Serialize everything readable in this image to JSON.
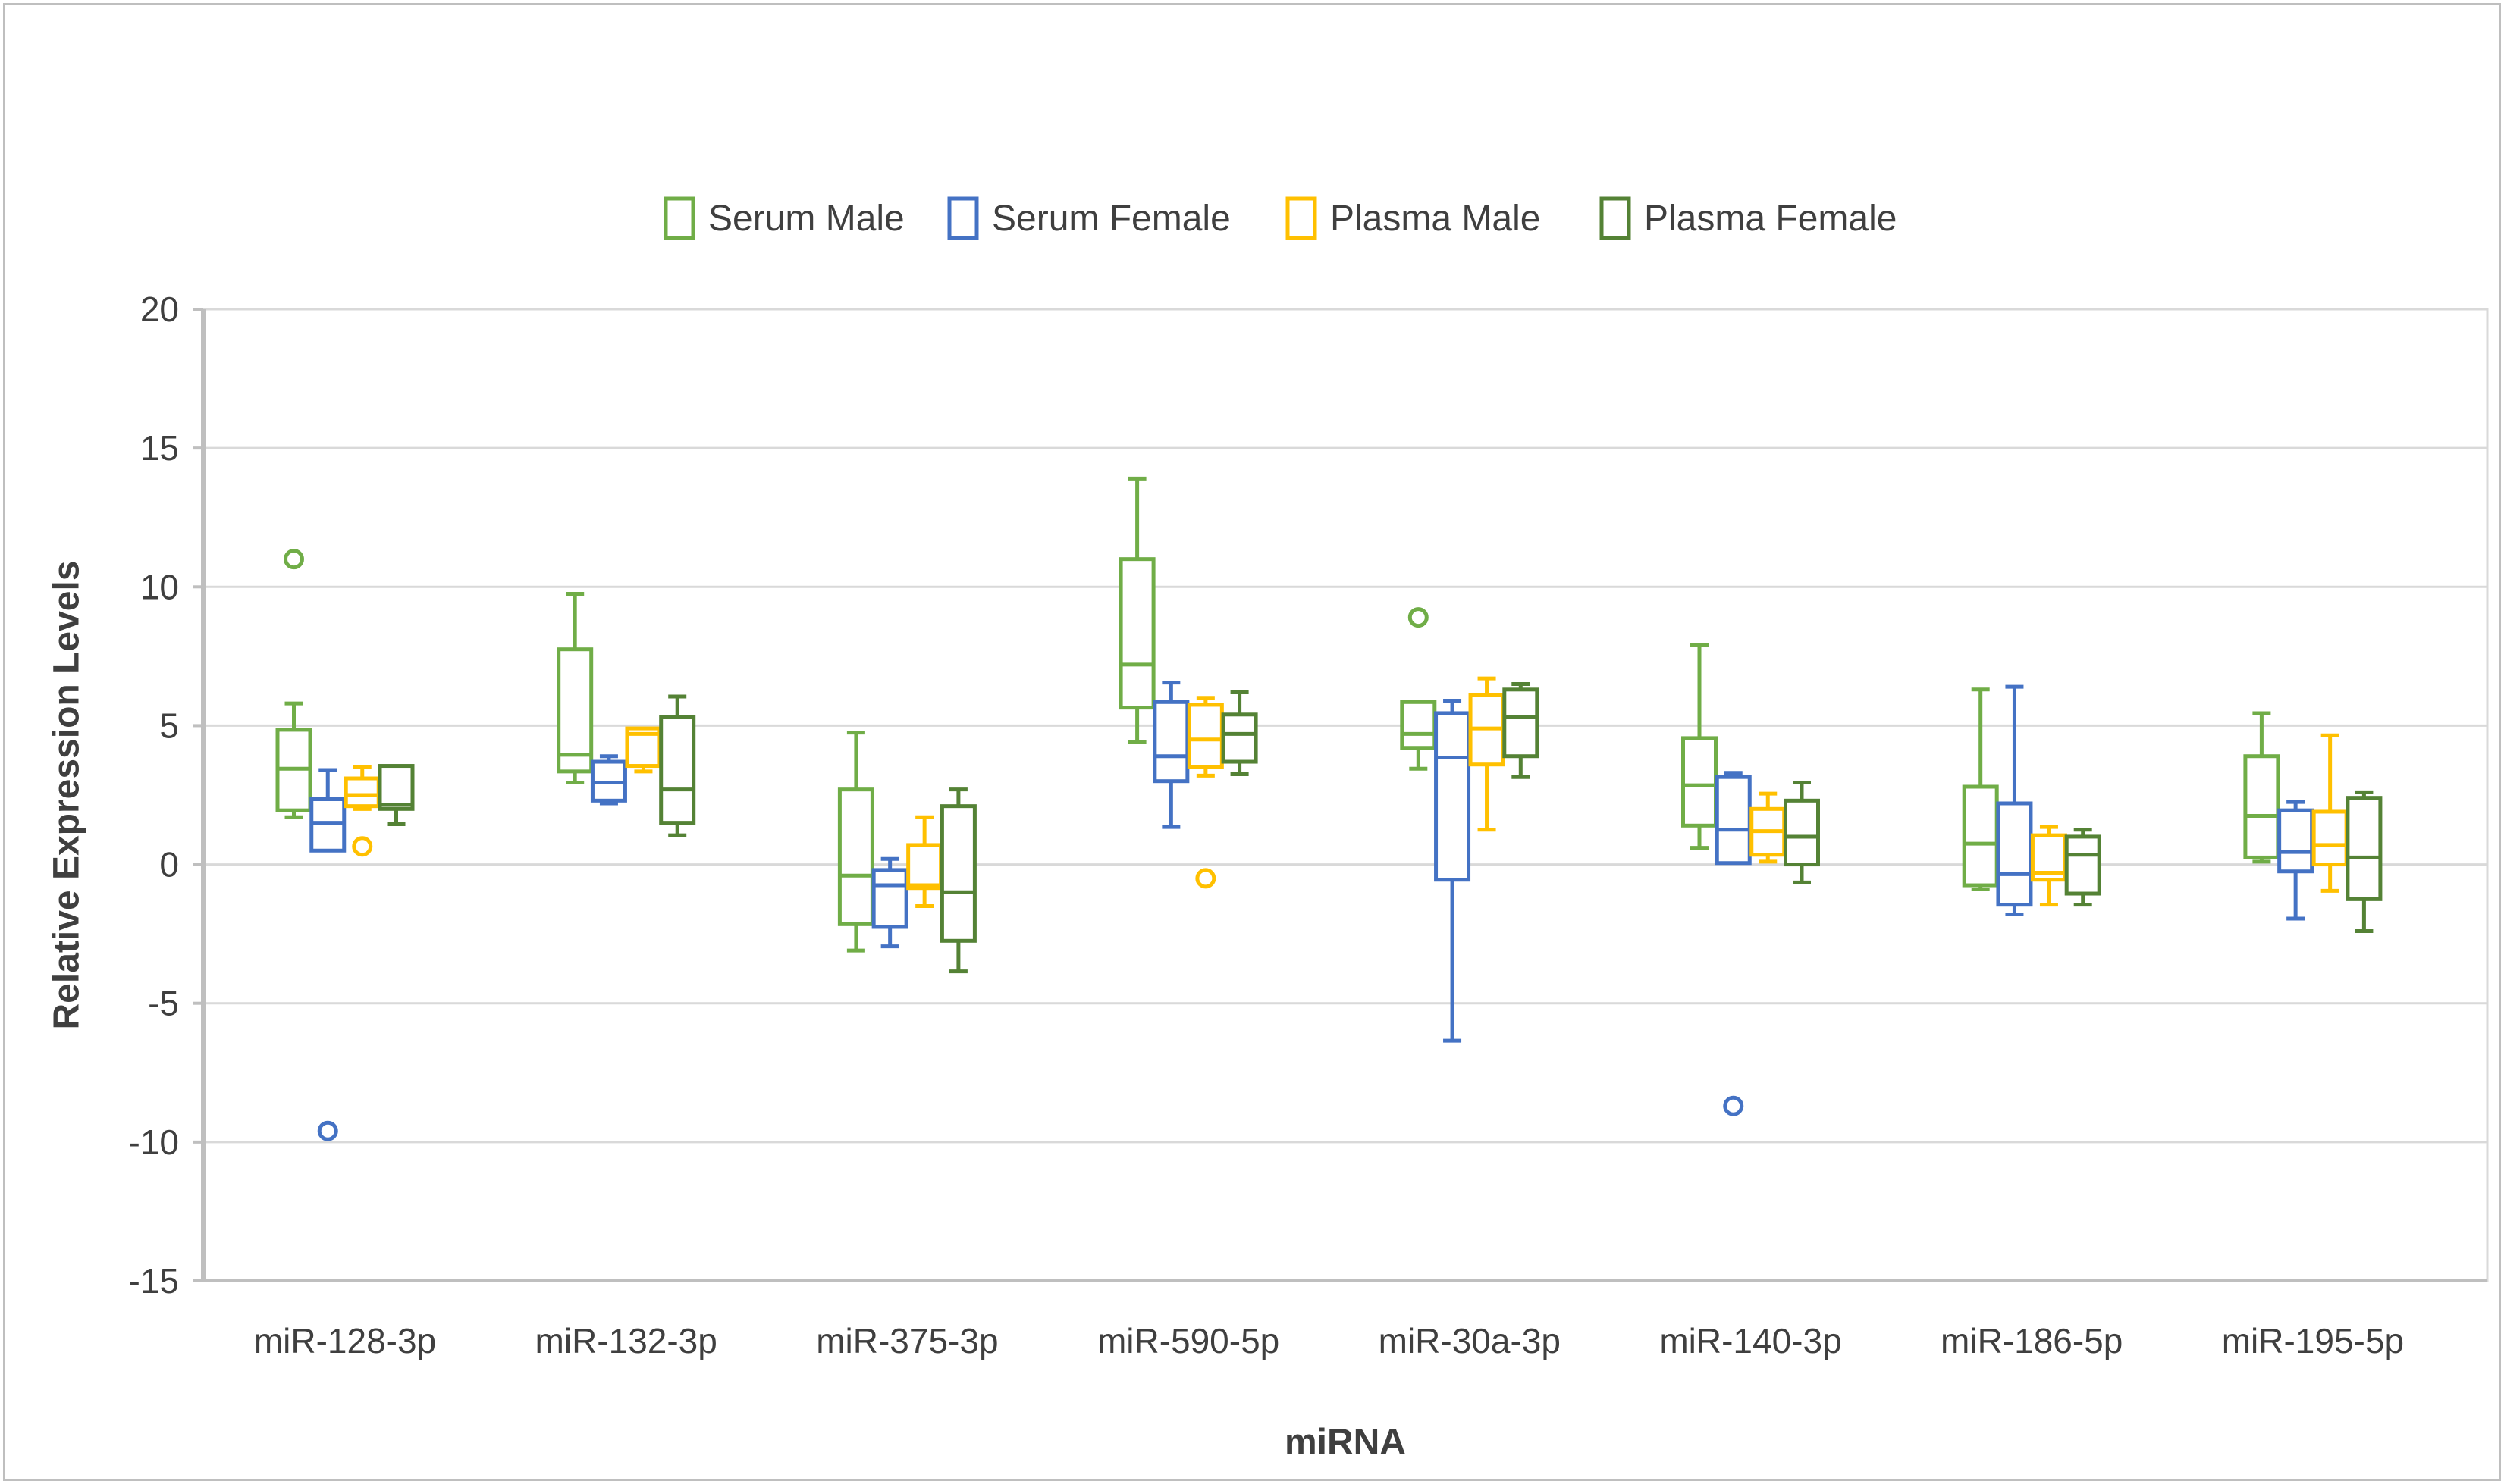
{
  "figure": {
    "background": "#ffffff",
    "border_color": "#bfbfbf"
  },
  "colors": {
    "gridline": "#d9d9d9",
    "axis_line": "#bfbfbf",
    "text": "#3f3f3f",
    "box_fill": "#ffffff"
  },
  "chart_data": {
    "type": "boxplot",
    "title": "",
    "xlabel": "miRNA",
    "ylabel": "Relative Expression Levels",
    "ylim": [
      -15,
      20
    ],
    "yticks": [
      20,
      15,
      10,
      5,
      0,
      -5,
      -10,
      -15
    ],
    "grid": true,
    "legend_position": "top",
    "categories": [
      "miR-128-3p",
      "miR-132-3p",
      "miR-375-3p",
      "miR-590-5p",
      "miR-30a-3p",
      "miR-140-3p",
      "miR-186-5p",
      "miR-195-5p"
    ],
    "series": [
      {
        "name": "Serum Male",
        "color": "#70AD47",
        "boxes": [
          {
            "lo": 1.7,
            "q1": 1.95,
            "med": 3.45,
            "q3": 4.85,
            "hi": 5.8,
            "outliers": [
              11.0
            ]
          },
          {
            "lo": 2.95,
            "q1": 3.35,
            "med": 3.95,
            "q3": 7.75,
            "hi": 9.75,
            "outliers": []
          },
          {
            "lo": -3.1,
            "q1": -2.15,
            "med": -0.4,
            "q3": 2.7,
            "hi": 4.75,
            "outliers": []
          },
          {
            "lo": 4.4,
            "q1": 5.65,
            "med": 7.2,
            "q3": 11.0,
            "hi": 13.9,
            "outliers": []
          },
          {
            "lo": 3.45,
            "q1": 4.2,
            "med": 4.7,
            "q3": 5.85,
            "hi": 5.85,
            "outliers": [
              8.9
            ]
          },
          {
            "lo": 0.6,
            "q1": 1.4,
            "med": 2.85,
            "q3": 4.55,
            "hi": 7.9,
            "outliers": []
          },
          {
            "lo": -0.9,
            "q1": -0.75,
            "med": 0.75,
            "q3": 2.8,
            "hi": 6.3,
            "outliers": []
          },
          {
            "lo": 0.1,
            "q1": 0.25,
            "med": 1.75,
            "q3": 3.9,
            "hi": 5.45,
            "outliers": []
          }
        ]
      },
      {
        "name": "Serum Female",
        "color": "#4472C4",
        "boxes": [
          {
            "lo": 0.5,
            "q1": 0.5,
            "med": 1.5,
            "q3": 2.35,
            "hi": 3.4,
            "outliers": [
              -9.6
            ]
          },
          {
            "lo": 2.2,
            "q1": 2.3,
            "med": 2.95,
            "q3": 3.7,
            "hi": 3.9,
            "outliers": []
          },
          {
            "lo": -2.95,
            "q1": -2.25,
            "med": -0.75,
            "q3": -0.2,
            "hi": 0.2,
            "outliers": []
          },
          {
            "lo": 1.35,
            "q1": 3.0,
            "med": 3.9,
            "q3": 5.85,
            "hi": 6.55,
            "outliers": []
          },
          {
            "lo": -6.35,
            "q1": -0.55,
            "med": 3.85,
            "q3": 5.45,
            "hi": 5.9,
            "outliers": []
          },
          {
            "lo": 0.05,
            "q1": 0.05,
            "med": 1.25,
            "q3": 3.15,
            "hi": 3.3,
            "outliers": [
              -8.7
            ]
          },
          {
            "lo": -1.8,
            "q1": -1.45,
            "med": -0.35,
            "q3": 2.2,
            "hi": 6.4,
            "outliers": []
          },
          {
            "lo": -1.95,
            "q1": -0.25,
            "med": 0.45,
            "q3": 1.95,
            "hi": 2.25,
            "outliers": []
          }
        ]
      },
      {
        "name": "Plasma Male",
        "color": "#FFC000",
        "boxes": [
          {
            "lo": 2.0,
            "q1": 2.1,
            "med": 2.5,
            "q3": 3.1,
            "hi": 3.5,
            "outliers": [
              0.65
            ]
          },
          {
            "lo": 3.35,
            "q1": 3.55,
            "med": 4.7,
            "q3": 4.9,
            "hi": 4.9,
            "outliers": []
          },
          {
            "lo": -1.5,
            "q1": -0.85,
            "med": -0.75,
            "q3": 0.7,
            "hi": 1.7,
            "outliers": []
          },
          {
            "lo": 3.2,
            "q1": 3.5,
            "med": 4.5,
            "q3": 5.75,
            "hi": 6.0,
            "outliers": [
              -0.5
            ]
          },
          {
            "lo": 1.25,
            "q1": 3.6,
            "med": 4.9,
            "q3": 6.1,
            "hi": 6.7,
            "outliers": []
          },
          {
            "lo": 0.1,
            "q1": 0.35,
            "med": 1.2,
            "q3": 2.0,
            "hi": 2.55,
            "outliers": []
          },
          {
            "lo": -1.45,
            "q1": -0.55,
            "med": -0.3,
            "q3": 1.05,
            "hi": 1.35,
            "outliers": []
          },
          {
            "lo": -0.95,
            "q1": 0.0,
            "med": 0.7,
            "q3": 1.9,
            "hi": 4.65,
            "outliers": []
          }
        ]
      },
      {
        "name": "Plasma Female",
        "color": "#548235",
        "boxes": [
          {
            "lo": 1.45,
            "q1": 2.0,
            "med": 2.15,
            "q3": 3.55,
            "hi": 3.55,
            "outliers": []
          },
          {
            "lo": 1.05,
            "q1": 1.5,
            "med": 2.7,
            "q3": 5.3,
            "hi": 6.05,
            "outliers": []
          },
          {
            "lo": -3.85,
            "q1": -2.75,
            "med": -1.0,
            "q3": 2.1,
            "hi": 2.7,
            "outliers": []
          },
          {
            "lo": 3.25,
            "q1": 3.7,
            "med": 4.7,
            "q3": 5.4,
            "hi": 6.2,
            "outliers": []
          },
          {
            "lo": 3.15,
            "q1": 3.9,
            "med": 5.3,
            "q3": 6.3,
            "hi": 6.5,
            "outliers": []
          },
          {
            "lo": -0.65,
            "q1": 0.0,
            "med": 1.0,
            "q3": 2.3,
            "hi": 2.95,
            "outliers": []
          },
          {
            "lo": -1.45,
            "q1": -1.05,
            "med": 0.35,
            "q3": 1.0,
            "hi": 1.25,
            "outliers": []
          },
          {
            "lo": -2.4,
            "q1": -1.25,
            "med": 0.25,
            "q3": 2.4,
            "hi": 2.6,
            "outliers": []
          }
        ]
      }
    ]
  }
}
